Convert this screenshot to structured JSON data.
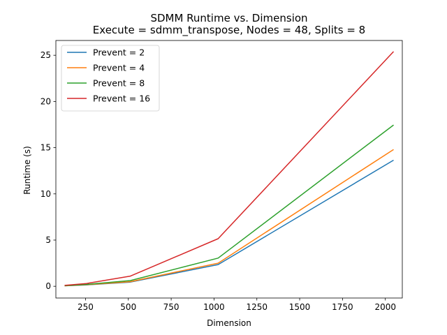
{
  "chart_data": {
    "type": "line",
    "title": "SDMM Runtime vs. Dimension",
    "subtitle": "Execute = sdmm_transpose, Nodes = 48, Splits = 8",
    "xlabel": "Dimension",
    "ylabel": "Runtime (s)",
    "xlim": [
      77,
      2099
    ],
    "ylim": [
      -1.27,
      26.6
    ],
    "xticks": [
      250,
      500,
      750,
      1000,
      1250,
      1500,
      1750,
      2000
    ],
    "yticks": [
      0,
      5,
      10,
      15,
      20,
      25
    ],
    "grid": false,
    "legend_position": "upper-left",
    "x": [
      128,
      256,
      512,
      1024,
      2048
    ],
    "series": [
      {
        "name": "Prevent = 2",
        "color": "#1f77b4",
        "values": [
          0.05,
          0.15,
          0.45,
          2.35,
          13.65
        ]
      },
      {
        "name": "Prevent = 4",
        "color": "#ff7f0e",
        "values": [
          0.05,
          0.17,
          0.5,
          2.5,
          14.8
        ]
      },
      {
        "name": "Prevent = 8",
        "color": "#2ca02c",
        "values": [
          0.06,
          0.2,
          0.62,
          3.05,
          17.45
        ]
      },
      {
        "name": "Prevent = 16",
        "color": "#d62728",
        "values": [
          0.1,
          0.3,
          1.1,
          5.15,
          25.4
        ]
      }
    ]
  }
}
